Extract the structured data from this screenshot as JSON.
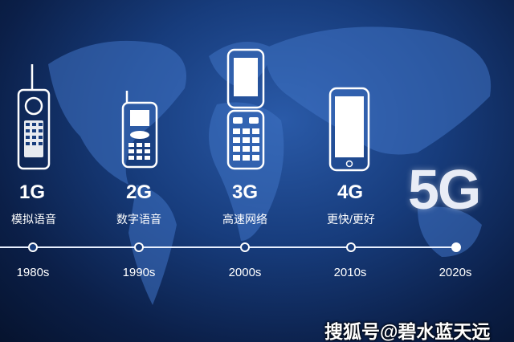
{
  "generations": [
    {
      "gen": "1G",
      "desc": "模拟语音",
      "year": "1980s",
      "icon": "brick-phone-icon"
    },
    {
      "gen": "2G",
      "desc": "数字语音",
      "year": "1990s",
      "icon": "feature-phone-icon"
    },
    {
      "gen": "3G",
      "desc": "高速网络",
      "year": "2000s",
      "icon": "flip-phone-icon"
    },
    {
      "gen": "4G",
      "desc": "更快/更好",
      "year": "2010s",
      "icon": "smartphone-icon"
    },
    {
      "gen": "5G",
      "desc": "",
      "year": "2020s"
    }
  ],
  "headline": "5G",
  "watermark": "搜狐号@碧水蓝天远",
  "colors": {
    "background": "#173c7c",
    "text": "#ffffff"
  }
}
